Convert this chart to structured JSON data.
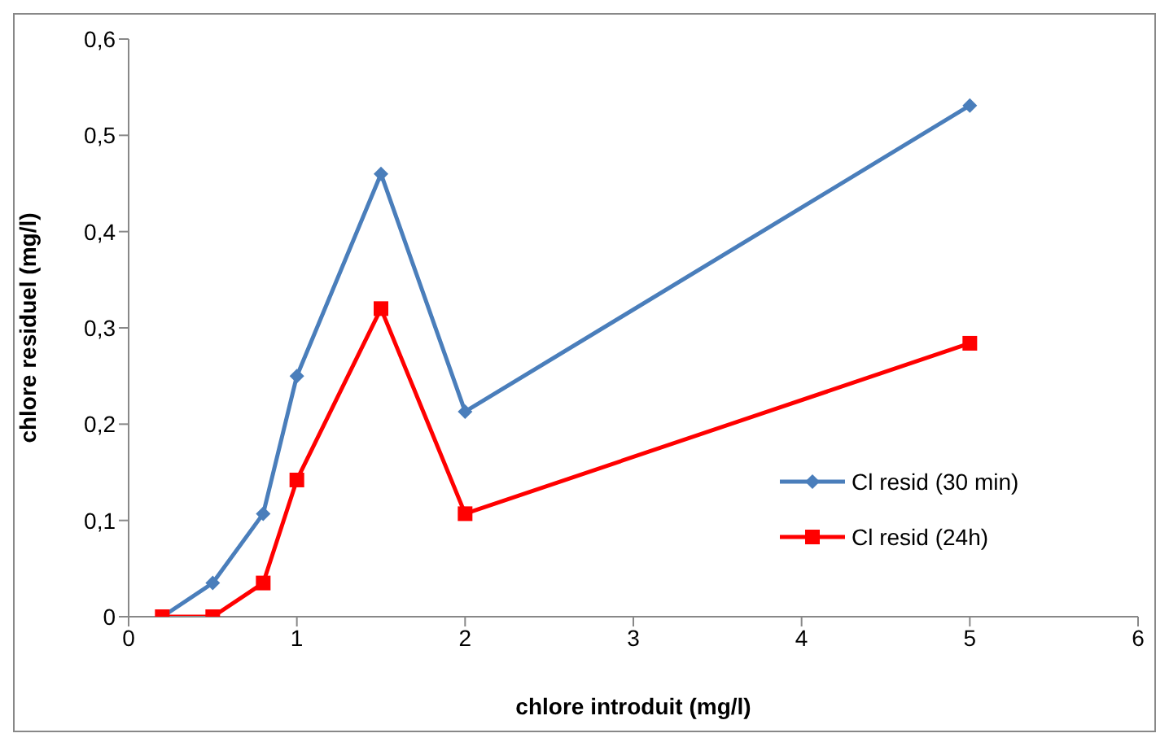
{
  "chart_data": {
    "type": "line",
    "xlabel": "chlore introduit (mg/l)",
    "ylabel": "chlore residuel (mg/l)",
    "x": [
      0.2,
      0.5,
      0.8,
      1.0,
      1.5,
      2,
      5
    ],
    "series": [
      {
        "name": "Cl resid (30 min)",
        "color": "#4a7ebb",
        "marker": "diamond",
        "values": [
          0,
          0.035,
          0.107,
          0.25,
          0.46,
          0.213,
          0.531
        ]
      },
      {
        "name": "Cl resid (24h)",
        "color": "#ff0000",
        "marker": "square",
        "values": [
          0,
          0,
          0.035,
          0.142,
          0.32,
          0.107,
          0.284
        ]
      }
    ],
    "xlim": [
      0,
      6
    ],
    "xticks": [
      0,
      1,
      2,
      3,
      4,
      5,
      6
    ],
    "ylim": [
      0,
      0.6
    ],
    "yticks": [
      {
        "value": 0,
        "label": "0"
      },
      {
        "value": 0.1,
        "label": "0,1"
      },
      {
        "value": 0.2,
        "label": "0,2"
      },
      {
        "value": 0.3,
        "label": "0,3"
      },
      {
        "value": 0.4,
        "label": "0,4"
      },
      {
        "value": 0.5,
        "label": "0,5"
      },
      {
        "value": 0.6,
        "label": "0,6"
      }
    ],
    "grid": false,
    "legend": "right"
  }
}
